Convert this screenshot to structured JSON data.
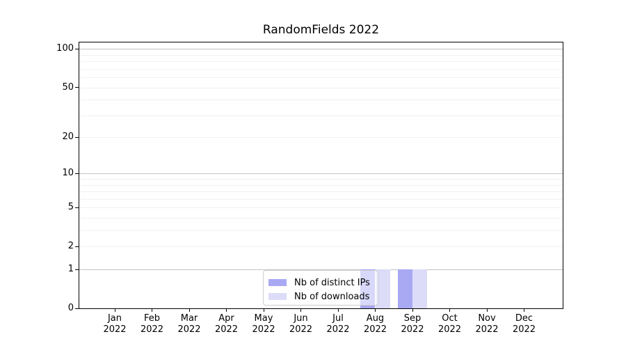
{
  "chart_data": {
    "type": "bar",
    "title": "RandomFields 2022",
    "x_tick_months": [
      "Jan",
      "Feb",
      "Mar",
      "Apr",
      "May",
      "Jun",
      "Jul",
      "Aug",
      "Sep",
      "Oct",
      "Nov",
      "Dec"
    ],
    "x_tick_year": "2022",
    "categories": [
      "Jan 2022",
      "Feb 2022",
      "Mar 2022",
      "Apr 2022",
      "May 2022",
      "Jun 2022",
      "Jul 2022",
      "Aug 2022",
      "Sep 2022",
      "Oct 2022",
      "Nov 2022",
      "Dec 2022"
    ],
    "series": [
      {
        "name": "Nb of distinct IPs",
        "color": "#a8a8f3",
        "values": [
          0,
          0,
          0,
          0,
          0,
          0,
          0,
          1,
          1,
          0,
          0,
          0
        ]
      },
      {
        "name": "Nb of downloads",
        "color": "#dcdcf8",
        "values": [
          0,
          0,
          0,
          0,
          0,
          0,
          0,
          1,
          1,
          0,
          0,
          0
        ]
      }
    ],
    "xlabel": "",
    "ylabel": "",
    "y_axis": {
      "scale": "log1p",
      "tick_values": [
        100,
        50,
        20,
        10,
        5,
        2,
        1,
        0
      ],
      "range": [
        0,
        114
      ],
      "major_gridlines": [
        1,
        10,
        100
      ],
      "minor_gridlines": [
        2,
        3,
        4,
        5,
        6,
        7,
        8,
        9,
        20,
        30,
        40,
        50,
        60,
        70,
        80,
        90
      ]
    },
    "grid": {
      "major_color": "#c4c4c4",
      "minor_color": "#f0f0f0"
    },
    "legend": {
      "entries": [
        "Nb of distinct IPs",
        "Nb of downloads"
      ],
      "position": "lower center"
    }
  }
}
